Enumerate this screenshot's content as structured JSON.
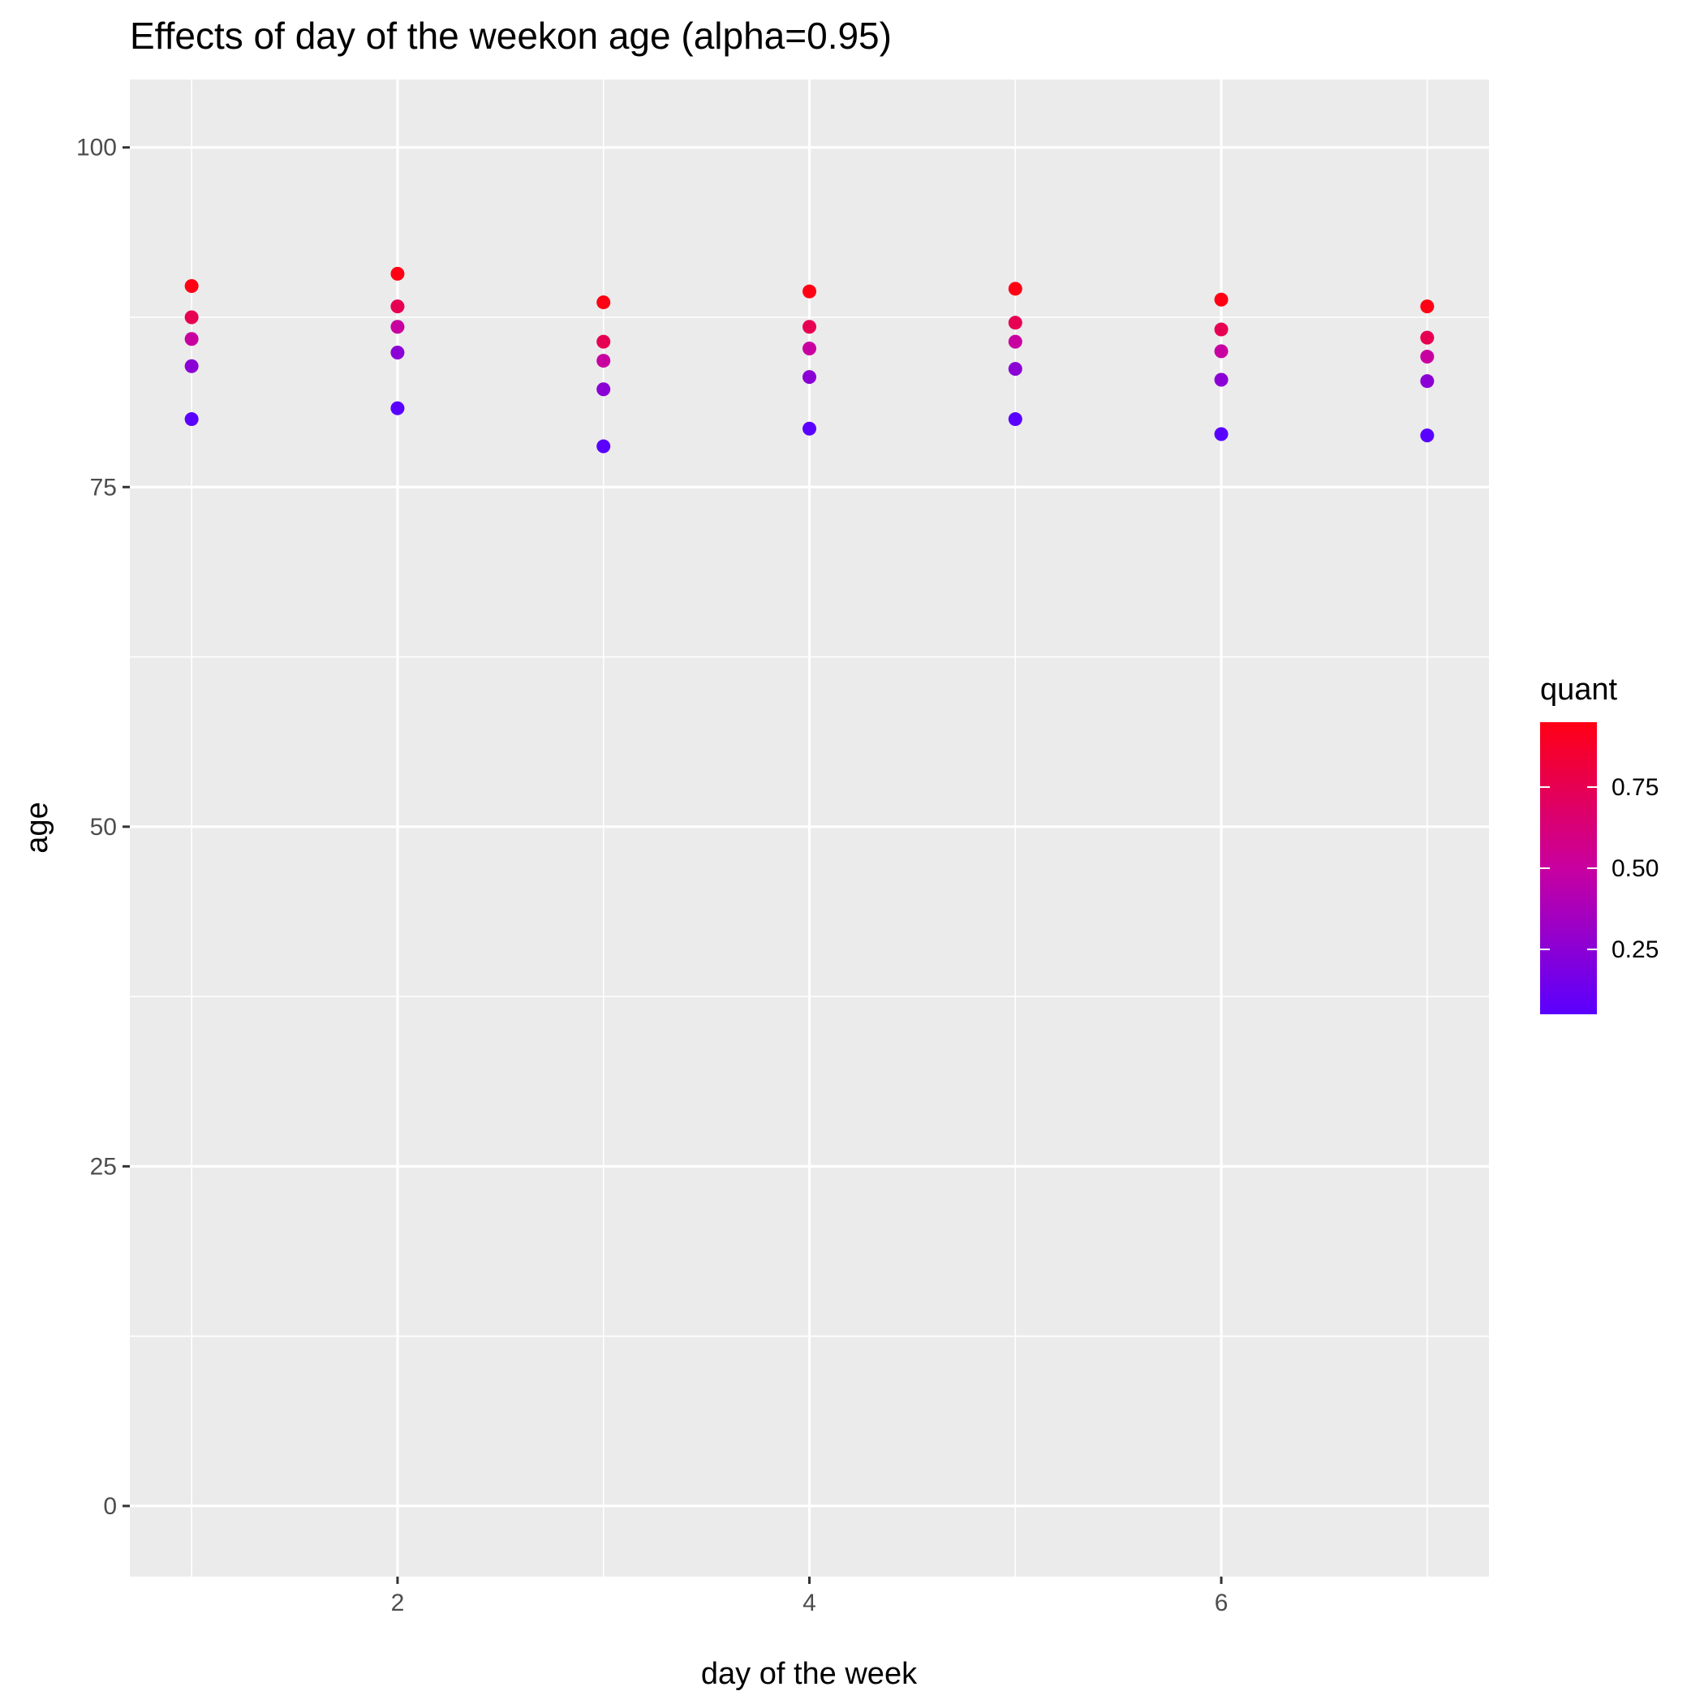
{
  "chart_data": {
    "type": "scatter",
    "title": "Effects of day of the weekon age (alpha=0.95)",
    "xlabel": "day of the week",
    "ylabel": "age",
    "xlim": [
      0.7,
      7.3
    ],
    "ylim": [
      -5.2,
      105
    ],
    "x_ticks": [
      2,
      4,
      6
    ],
    "x_tick_labels": [
      "2",
      "4",
      "6"
    ],
    "y_ticks": [
      0,
      25,
      50,
      75,
      100
    ],
    "y_tick_labels": [
      "0",
      "25",
      "50",
      "75",
      "100"
    ],
    "grid": true,
    "legend": {
      "title": "quant",
      "placement": "right",
      "range": [
        0.05,
        0.95
      ],
      "ticks": [
        0.25,
        0.5,
        0.75
      ],
      "tick_labels": [
        "0.25",
        "0.50",
        "0.75"
      ],
      "low_color": "#5a00ff",
      "mid_color": "#c800a0",
      "high_color": "#ff0014"
    },
    "quantiles": [
      0.05,
      0.25,
      0.5,
      0.75,
      0.95
    ],
    "x": [
      1,
      2,
      3,
      4,
      5,
      6,
      7
    ],
    "series": [
      {
        "quant": 0.05,
        "values": [
          80.0,
          80.8,
          78.0,
          79.3,
          80.0,
          78.9,
          78.8
        ]
      },
      {
        "quant": 0.25,
        "values": [
          83.9,
          84.9,
          82.2,
          83.1,
          83.7,
          82.9,
          82.8
        ]
      },
      {
        "quant": 0.5,
        "values": [
          85.9,
          86.8,
          84.3,
          85.2,
          85.7,
          85.0,
          84.6
        ]
      },
      {
        "quant": 0.75,
        "values": [
          87.5,
          88.3,
          85.7,
          86.8,
          87.1,
          86.6,
          86.0
        ]
      },
      {
        "quant": 0.95,
        "values": [
          89.8,
          90.7,
          88.6,
          89.4,
          89.6,
          88.8,
          88.3
        ]
      }
    ]
  }
}
